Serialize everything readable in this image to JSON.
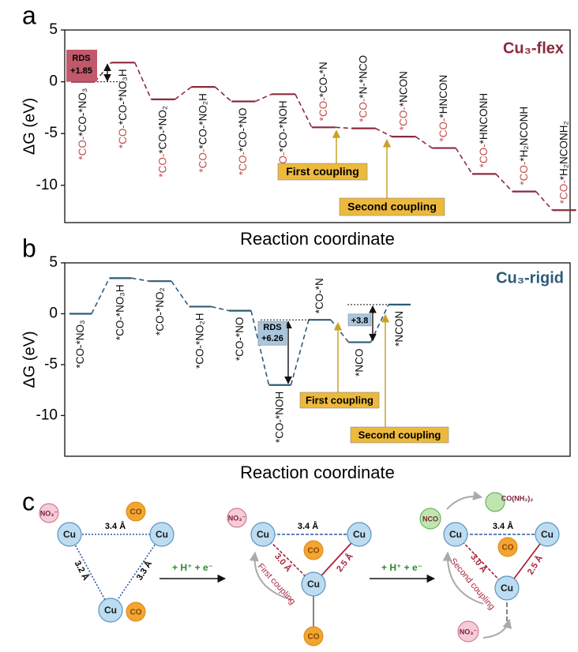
{
  "chart_data": [
    {
      "type": "step",
      "panel": "a",
      "title": "Cu₃-flex",
      "color": "#8b2a3c",
      "xlabel": "Reaction coordinate",
      "ylabel": "ΔG (eV)",
      "category_prefix": "*CO-",
      "categories": [
        "*CO-*NO₃",
        "*CO-*NO₃H",
        "*CO-*NO₂",
        "*CO-*NO₂H",
        "*CO-*NO",
        "*CO-*NOH",
        "*CO-*N",
        "*N-*NCO",
        "*NCON",
        "*HNCON",
        "*HNCONH",
        "*H₂NCONH",
        "*H₂NCONH₂"
      ],
      "values": [
        0,
        1.85,
        -1.7,
        -0.5,
        -1.9,
        -1.2,
        -4.4,
        -4.5,
        -5.3,
        -6.4,
        -8.9,
        -10.6,
        -12.4
      ],
      "ylim": [
        -13.6,
        5
      ],
      "yticks": [
        5,
        0,
        -5,
        -10
      ],
      "annotations": {
        "rds": "RDS",
        "rds_value": "+1.85",
        "first": "First coupling",
        "second": "Second coupling"
      }
    },
    {
      "type": "step",
      "panel": "b",
      "title": "Cu₃-rigid",
      "color": "#2e5b78",
      "xlabel": "Reaction coordinate",
      "ylabel": "ΔG (eV)",
      "categories": [
        "*CO-*NO₃",
        "*CO-*NO₃H",
        "*CO-*NO₂",
        "*CO-*NO₂H",
        "*CO-*NO",
        "*CO-*NOH",
        "*CO-*N",
        "*NCO",
        "*NCON"
      ],
      "values": [
        0,
        3.5,
        3.2,
        0.7,
        0.3,
        -7.0,
        -0.6,
        -2.8,
        0.9
      ],
      "ylim": [
        -14,
        5
      ],
      "yticks": [
        5,
        0,
        -5,
        -10
      ],
      "annotations": {
        "rds": "RDS",
        "rds_value": "+6.26",
        "gap": "+3.8",
        "first": "First coupling",
        "second": "Second coupling"
      }
    }
  ],
  "diagram": {
    "panel": "c",
    "no3": "NO₃⁻",
    "co": "CO",
    "cu": "Cu",
    "nco": "NCO",
    "urea": "CO(NH₂)₂",
    "d34": "3.4 Å",
    "d32": "3.2 Å",
    "d33": "3.3 Å",
    "d30": "3.0 Å",
    "d25": "2.5 Å",
    "step": "+ H⁺ + e⁻",
    "first": "First coupling",
    "second": "Second coupling"
  }
}
